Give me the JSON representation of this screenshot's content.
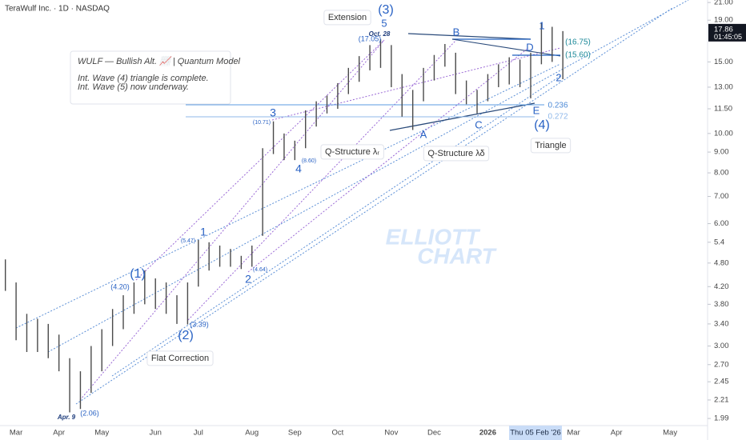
{
  "chart_data": {
    "type": "range-bar",
    "header": "TeraWulf Inc. · 1D · NASDAQ",
    "log_scale": true,
    "grid": false,
    "color": "#4a4a4a",
    "ylim": [
      1.86,
      21.3
    ],
    "yticks": [
      {
        "value": 21,
        "label": "21.00"
      },
      {
        "value": 19,
        "label": "19.00"
      },
      {
        "value": 15,
        "label": "15.00"
      },
      {
        "value": 13,
        "label": "13.00"
      },
      {
        "value": 11.5,
        "label": "11.50"
      },
      {
        "value": 10,
        "label": "10.00"
      },
      {
        "value": 9,
        "label": "9.00"
      },
      {
        "value": 8,
        "label": "8.00"
      },
      {
        "value": 7,
        "label": "7.00"
      },
      {
        "value": 6,
        "label": "6.00"
      },
      5.4,
      {
        "value": 4.8,
        "label": "4.80"
      },
      {
        "value": 4.2,
        "label": "4.20"
      },
      {
        "value": 3.8,
        "label": "3.80"
      },
      {
        "value": 3.4,
        "label": "3.40"
      },
      {
        "value": 3,
        "label": "3.00"
      },
      {
        "value": 2.7,
        "label": "2.70"
      },
      2.45,
      2.21,
      1.99
    ],
    "categories": [
      null,
      "Mar",
      null,
      null,
      null,
      "Apr",
      null,
      null,
      null,
      "May",
      null,
      null,
      null,
      null,
      "Jun",
      null,
      null,
      null,
      "Jul",
      null,
      null,
      null,
      null,
      "Aug",
      null,
      null,
      null,
      "Sep",
      null,
      null,
      null,
      "Oct",
      null,
      null,
      null,
      null,
      "Nov",
      null,
      null,
      null,
      "Dec",
      null,
      null,
      null,
      null,
      "2026",
      null,
      null,
      null,
      null,
      null,
      null,
      null,
      "Mar",
      null,
      null,
      null,
      "Apr",
      null,
      null,
      null,
      null,
      "May",
      null,
      null,
      null
    ],
    "highs": [
      4.9,
      4.3,
      3.6,
      3.5,
      3.4,
      3.2,
      2.8,
      2.6,
      3.0,
      3.3,
      3.7,
      4.0,
      4.3,
      4.6,
      4.4,
      4.3,
      4.0,
      4.3,
      5.47,
      5.4,
      5.3,
      5.2,
      5.0,
      5.3,
      9.2,
      10.71,
      10.0,
      9.6,
      11.4,
      12.0,
      12.4,
      13.3,
      14.5,
      15.5,
      16.5,
      17.05,
      16.5,
      14.0,
      12.8,
      14.5,
      15.6,
      16.6,
      15.8,
      13.5,
      12.8,
      14.0,
      14.8,
      15.4,
      15.2,
      15.8,
      18.7,
      18.3,
      17.86,
      null,
      null,
      null,
      null,
      null,
      null,
      null,
      null,
      null,
      null,
      null,
      null,
      null
    ],
    "lows": [
      4.1,
      3.1,
      2.9,
      2.9,
      2.8,
      2.6,
      2.06,
      2.1,
      2.3,
      2.6,
      3.0,
      3.3,
      3.6,
      3.8,
      3.7,
      3.6,
      3.4,
      3.39,
      4.2,
      4.6,
      4.7,
      4.7,
      4.64,
      4.7,
      5.6,
      8.9,
      8.6,
      8.6,
      9.2,
      10.4,
      11.2,
      11.5,
      12.5,
      13.4,
      14.3,
      14.5,
      13.0,
      11.0,
      10.2,
      12.0,
      13.5,
      14.6,
      12.5,
      11.8,
      11.2,
      12.0,
      13.0,
      13.2,
      13.0,
      12.2,
      14.8,
      15.0,
      13.6,
      null,
      null,
      null,
      null,
      null,
      null,
      null,
      null,
      null,
      null,
      null,
      null,
      null
    ],
    "last_price": 17.86,
    "countdown": "01:45:05",
    "cursor_date": "Thu 05 Feb '26",
    "annotations": [
      "(3)",
      "5",
      "Extension",
      "Oct. 28",
      "(17.05)",
      "B",
      "1",
      "D",
      "(16.75)",
      "(15.60)",
      "2",
      "0.236",
      "0.272",
      "E",
      "(4)",
      "Triangle",
      "C",
      "A",
      "Q-Structure λᵣ",
      "Q-Structure λδ",
      "3",
      "(10.71)",
      "4",
      "(8.60)",
      "1",
      "(5.47)",
      "2",
      "(4.64)",
      "(1)",
      "(4.20)",
      "(2)",
      "(3.39)",
      "Flat Correction",
      "Apr. 9",
      "(2.06)"
    ],
    "info_box": [
      "WULF — Bullish Alt. 📈 | Quantum Model",
      "Int. Wave (4) triangle is complete.",
      "Int. Wave (5) now underway."
    ],
    "watermark": [
      "ELLIOTT",
      "CHART"
    ]
  }
}
